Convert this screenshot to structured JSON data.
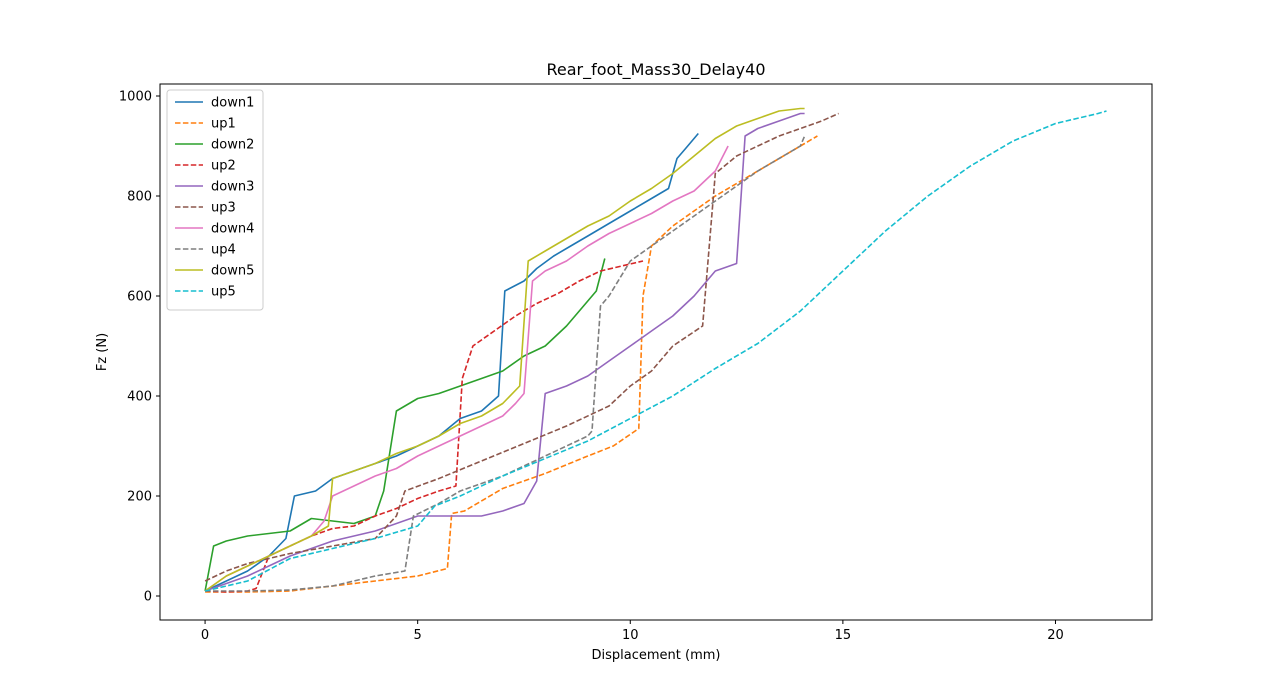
{
  "chart_data": {
    "type": "line",
    "title": "Rear_foot_Mass30_Delay40",
    "xlabel": "Displacement (mm)",
    "ylabel": "Fz (N)",
    "xlim": [
      -1.06,
      22.27
    ],
    "ylim": [
      -48,
      1024
    ],
    "xticks": [
      0,
      5,
      10,
      15,
      20
    ],
    "yticks": [
      0,
      200,
      400,
      600,
      800,
      1000
    ],
    "grid": false,
    "legend_position": "upper-left",
    "series": [
      {
        "name": "down1",
        "color": "#1f77b4",
        "dash": "solid",
        "x": [
          0,
          0.5,
          1,
          1.5,
          1.9,
          2.1,
          2.6,
          3.0,
          3.5,
          4.0,
          4.5,
          5.0,
          5.5,
          6.0,
          6.5,
          6.9,
          7.05,
          7.5,
          7.8,
          8.2,
          8.6,
          9.0,
          9.5,
          10.0,
          10.5,
          10.9,
          11.1,
          11.3,
          11.6
        ],
        "y": [
          10,
          30,
          50,
          80,
          115,
          200,
          210,
          235,
          250,
          265,
          280,
          300,
          320,
          355,
          370,
          400,
          610,
          630,
          655,
          680,
          700,
          720,
          745,
          770,
          795,
          815,
          875,
          895,
          925
        ]
      },
      {
        "name": "up1",
        "color": "#ff7f0e",
        "dash": "dashed",
        "x": [
          0,
          1,
          2,
          3,
          4,
          5,
          5.7,
          5.8,
          6.1,
          7,
          8,
          9,
          9.6,
          10.2,
          10.3,
          10.5,
          11,
          12,
          13,
          14,
          14.4
        ],
        "y": [
          8,
          8,
          10,
          20,
          30,
          40,
          55,
          165,
          170,
          215,
          245,
          280,
          300,
          335,
          600,
          700,
          740,
          800,
          850,
          900,
          920
        ]
      },
      {
        "name": "down2",
        "color": "#2ca02c",
        "dash": "solid",
        "x": [
          0,
          0.2,
          0.5,
          1,
          1.5,
          2,
          2.5,
          3,
          3.5,
          4,
          4.2,
          4.5,
          5,
          5.5,
          6,
          6.5,
          7,
          7.5,
          8,
          8.5,
          9,
          9.2,
          9.4
        ],
        "y": [
          10,
          100,
          110,
          120,
          125,
          130,
          155,
          150,
          145,
          160,
          210,
          370,
          395,
          405,
          420,
          435,
          450,
          480,
          500,
          540,
          590,
          610,
          675
        ]
      },
      {
        "name": "up2",
        "color": "#d62728",
        "dash": "dashed",
        "x": [
          0,
          0.5,
          1,
          1.2,
          1.5,
          2,
          2.5,
          3,
          3.5,
          4,
          4.5,
          5,
          5.5,
          5.9,
          6.05,
          6.3,
          6.8,
          7.3,
          7.8,
          8.3,
          8.8,
          9.3,
          9.8,
          10.3
        ],
        "y": [
          10,
          8,
          10,
          15,
          80,
          100,
          120,
          135,
          140,
          160,
          175,
          195,
          210,
          220,
          435,
          500,
          530,
          560,
          585,
          605,
          630,
          650,
          660,
          670
        ]
      },
      {
        "name": "down3",
        "color": "#9467bd",
        "dash": "solid",
        "x": [
          0,
          1,
          2,
          3,
          4,
          5,
          6,
          6.5,
          7,
          7.5,
          7.8,
          8.0,
          8.5,
          9,
          9.5,
          10,
          10.5,
          11,
          11.5,
          12,
          12.5,
          12.7,
          13,
          13.5,
          14,
          14.1
        ],
        "y": [
          10,
          40,
          80,
          110,
          130,
          160,
          160,
          160,
          170,
          185,
          230,
          405,
          420,
          440,
          470,
          500,
          530,
          560,
          600,
          650,
          665,
          920,
          935,
          950,
          965,
          965
        ]
      },
      {
        "name": "up3",
        "color": "#8c564b",
        "dash": "dashed",
        "x": [
          0,
          0.5,
          1,
          1.5,
          2,
          3,
          4,
          4.5,
          4.7,
          5.5,
          6.5,
          7.5,
          8.5,
          9.5,
          10,
          10.5,
          11,
          11.7,
          12.0,
          12.5,
          13,
          13.5,
          14,
          14.5,
          14.9
        ],
        "y": [
          30,
          50,
          65,
          75,
          85,
          100,
          115,
          160,
          210,
          235,
          270,
          305,
          340,
          380,
          420,
          450,
          500,
          540,
          845,
          880,
          900,
          920,
          935,
          950,
          965
        ]
      },
      {
        "name": "down4",
        "color": "#e377c2",
        "dash": "solid",
        "x": [
          0,
          0.5,
          1,
          1.5,
          2,
          2.5,
          2.8,
          3.0,
          3.5,
          4,
          4.5,
          5,
          5.5,
          6,
          6.5,
          7,
          7.3,
          7.5,
          7.7,
          8,
          8.5,
          9,
          9.5,
          10,
          10.5,
          11,
          11.5,
          12,
          12.3
        ],
        "y": [
          10,
          40,
          60,
          80,
          100,
          120,
          150,
          200,
          220,
          240,
          255,
          280,
          300,
          320,
          340,
          360,
          385,
          405,
          630,
          650,
          670,
          700,
          725,
          745,
          765,
          790,
          810,
          850,
          900
        ]
      },
      {
        "name": "up4",
        "color": "#7f7f7f",
        "dash": "dashed",
        "x": [
          0,
          1,
          2,
          3,
          4,
          4.7,
          4.9,
          5.5,
          6,
          6.5,
          7,
          7.5,
          8,
          8.5,
          9,
          9.1,
          9.3,
          9.5,
          10,
          10.5,
          11,
          11.5,
          12,
          12.5,
          13,
          13.5,
          14,
          14.1
        ],
        "y": [
          10,
          10,
          12,
          20,
          40,
          50,
          160,
          185,
          210,
          225,
          240,
          260,
          280,
          300,
          320,
          330,
          580,
          600,
          670,
          700,
          730,
          760,
          790,
          820,
          850,
          875,
          900,
          920
        ]
      },
      {
        "name": "down5",
        "color": "#bcbd22",
        "dash": "solid",
        "x": [
          0,
          0.5,
          1,
          1.5,
          2,
          2.5,
          2.9,
          3.0,
          3.5,
          4,
          4.5,
          5,
          5.5,
          6,
          6.5,
          7,
          7.4,
          7.6,
          8,
          8.5,
          9,
          9.5,
          10,
          10.5,
          11,
          11.5,
          12,
          12.5,
          13,
          13.5,
          14,
          14.1
        ],
        "y": [
          10,
          40,
          60,
          80,
          100,
          120,
          140,
          235,
          250,
          265,
          285,
          300,
          320,
          345,
          360,
          385,
          420,
          670,
          690,
          715,
          740,
          760,
          790,
          815,
          845,
          880,
          915,
          940,
          955,
          970,
          975,
          975
        ]
      },
      {
        "name": "up5",
        "color": "#17becf",
        "dash": "dashed",
        "x": [
          0,
          1,
          2,
          3,
          4,
          5,
          5.4,
          6,
          7,
          8,
          9,
          10,
          11,
          12,
          13,
          14,
          15,
          16,
          17,
          18,
          19,
          20,
          20.5,
          21,
          21.2
        ],
        "y": [
          10,
          30,
          75,
          95,
          115,
          140,
          180,
          200,
          240,
          275,
          310,
          355,
          400,
          455,
          505,
          570,
          650,
          730,
          800,
          860,
          910,
          945,
          955,
          965,
          970
        ]
      }
    ]
  }
}
